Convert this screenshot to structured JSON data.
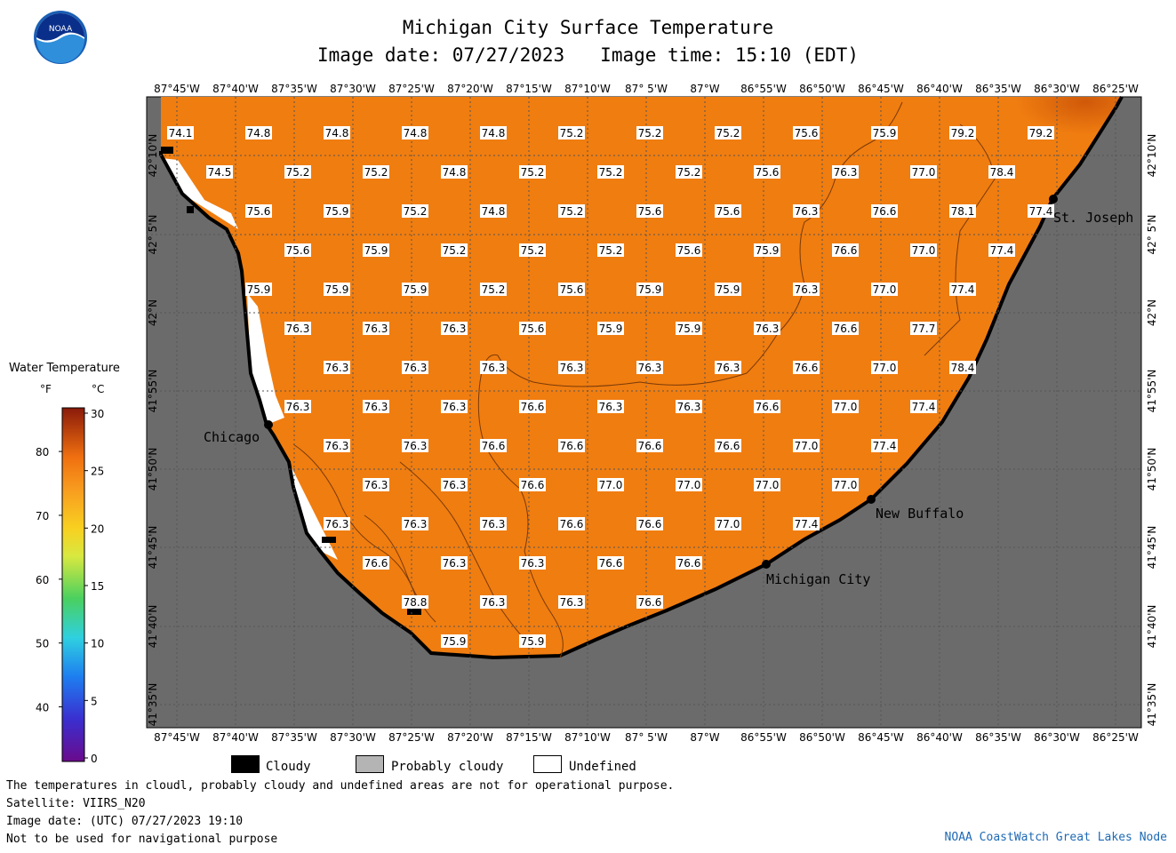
{
  "header": {
    "title": "Michigan City Surface Temperature",
    "image_date": "Image date: 07/27/2023",
    "image_time": "Image time: 15:10 (EDT)",
    "logo_text": "NOAA"
  },
  "axes": {
    "lon_labels": [
      "87°45'W",
      "87°40'W",
      "87°35'W",
      "87°30'W",
      "87°25'W",
      "87°20'W",
      "87°15'W",
      "87°10'W",
      "87° 5'W",
      "87°W",
      "86°55'W",
      "86°50'W",
      "86°45'W",
      "86°40'W",
      "86°35'W",
      "86°30'W",
      "86°25'W"
    ],
    "lat_labels": [
      "42°10'N",
      "42° 5'N",
      "42°N",
      "41°55'N",
      "41°50'N",
      "41°45'N",
      "41°40'N",
      "41°35'N"
    ]
  },
  "cities": [
    {
      "name": "Chicago"
    },
    {
      "name": "St. Joseph"
    },
    {
      "name": "New Buffalo"
    },
    {
      "name": "Michigan City"
    }
  ],
  "temperature_rows": [
    [
      "74.1",
      "74.8",
      "74.8",
      "74.8",
      "74.8",
      "75.2",
      "75.2",
      "75.2",
      "75.6",
      "75.9",
      "79.2",
      "79.2"
    ],
    [
      "74.5",
      "75.2",
      "75.2",
      "74.8",
      "75.2",
      "75.2",
      "75.2",
      "75.6",
      "76.3",
      "77.0",
      "78.4"
    ],
    [
      "75.6",
      "75.9",
      "75.2",
      "74.8",
      "75.2",
      "75.6",
      "75.6",
      "76.3",
      "76.6",
      "78.1",
      "77.4"
    ],
    [
      "75.6",
      "75.9",
      "75.2",
      "75.2",
      "75.2",
      "75.6",
      "75.9",
      "76.6",
      "77.0",
      "77.4"
    ],
    [
      "75.9",
      "75.9",
      "75.9",
      "75.2",
      "75.6",
      "75.9",
      "75.9",
      "76.3",
      "77.0",
      "77.4"
    ],
    [
      "76.3",
      "76.3",
      "76.3",
      "75.6",
      "75.9",
      "75.9",
      "76.3",
      "76.6",
      "77.7"
    ],
    [
      "76.3",
      "76.3",
      "76.3",
      "76.3",
      "76.3",
      "76.3",
      "76.6",
      "77.0",
      "78.4"
    ],
    [
      "76.3",
      "76.3",
      "76.3",
      "76.6",
      "76.3",
      "76.3",
      "76.6",
      "77.0",
      "77.4"
    ],
    [
      "76.3",
      "76.3",
      "76.6",
      "76.6",
      "76.6",
      "76.6",
      "77.0",
      "77.4"
    ],
    [
      "76.3",
      "76.3",
      "76.6",
      "77.0",
      "77.0",
      "77.0",
      "77.0"
    ],
    [
      "76.3",
      "76.3",
      "76.3",
      "76.6",
      "76.6",
      "77.0",
      "77.4"
    ],
    [
      "76.6",
      "76.3",
      "76.3",
      "76.6",
      "76.6"
    ],
    [
      "78.8",
      "76.3",
      "76.3",
      "76.6"
    ],
    [
      "75.9",
      "75.9"
    ]
  ],
  "legend": {
    "title": "Water Temperature",
    "unit_f": "°F",
    "unit_c": "°C",
    "f_ticks": [
      "80",
      "70",
      "60",
      "50",
      "40"
    ],
    "c_ticks": [
      "30",
      "25",
      "20",
      "15",
      "10",
      "5",
      "0"
    ],
    "keys": [
      {
        "label": "Cloudy",
        "color": "#000000"
      },
      {
        "label": "Probably cloudy",
        "color": "#b4b4b4"
      },
      {
        "label": "Undefined",
        "color": "#ffffff"
      }
    ]
  },
  "footer": {
    "line1": "The temperatures in cloudl, probably cloudy and undefined areas are not for operational purpose.",
    "line2": "Satellite: VIIRS_N20",
    "line3": "Image date: (UTC) 07/27/2023  19:10",
    "line4": "Not to be used for navigational purpose",
    "credit": "NOAA CoastWatch Great Lakes Node"
  },
  "colors": {
    "water": "#f07d10",
    "land": "#6b6b6b",
    "credit": "#1e6ab4"
  }
}
